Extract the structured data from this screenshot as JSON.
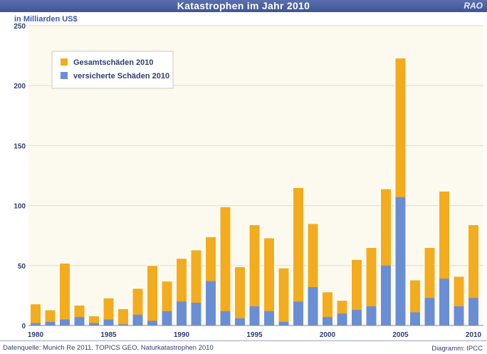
{
  "header": {
    "title": "Katastrophen im Jahr 2010",
    "brand": "RAO"
  },
  "footer": {
    "source": "Datenquelle: Munich Re 2011, TOPICS GEO, Naturkatastrophen 2010",
    "credit": "Diagramm: IPCC"
  },
  "colors": {
    "total": "#f2ac1e",
    "insured": "#6a8ed4",
    "plot_bg": "#fcf9ee",
    "grid": "#e4dcc8",
    "axis_text": "#2f3c74"
  },
  "chart_data": {
    "type": "bar",
    "unit_label": "in Milliarden US$",
    "ylim": [
      0,
      250
    ],
    "yticks": [
      0,
      50,
      100,
      150,
      200,
      250
    ],
    "xticks": [
      "1980",
      "1985",
      "1990",
      "1995",
      "2000",
      "2005",
      "2010"
    ],
    "grid": true,
    "legend_position": "top-left",
    "categories": [
      "1980",
      "1981",
      "1982",
      "1983",
      "1984",
      "1985",
      "1986",
      "1987",
      "1988",
      "1989",
      "1990",
      "1991",
      "1992",
      "1993",
      "1994",
      "1995",
      "1996",
      "1997",
      "1998",
      "1999",
      "2000",
      "2001",
      "2002",
      "2003",
      "2004",
      "2005",
      "2006",
      "2007",
      "2008",
      "2009",
      "2010"
    ],
    "series": [
      {
        "name": "Gesamtschäden 2010",
        "color": "#f2ac1e",
        "values": [
          18,
          13,
          52,
          17,
          8,
          23,
          14,
          31,
          50,
          37,
          56,
          63,
          74,
          99,
          49,
          84,
          73,
          48,
          115,
          85,
          28,
          21,
          55,
          65,
          114,
          223,
          38,
          65,
          112,
          41,
          84
        ]
      },
      {
        "name": "versicherte Schäden 2010",
        "color": "#6a8ed4",
        "values": [
          2,
          3,
          5,
          7,
          2,
          5,
          1,
          9,
          4,
          12,
          20,
          19,
          37,
          12,
          6,
          16,
          12,
          3,
          20,
          32,
          7,
          10,
          13,
          16,
          50,
          107,
          11,
          23,
          39,
          16,
          23
        ]
      }
    ]
  }
}
